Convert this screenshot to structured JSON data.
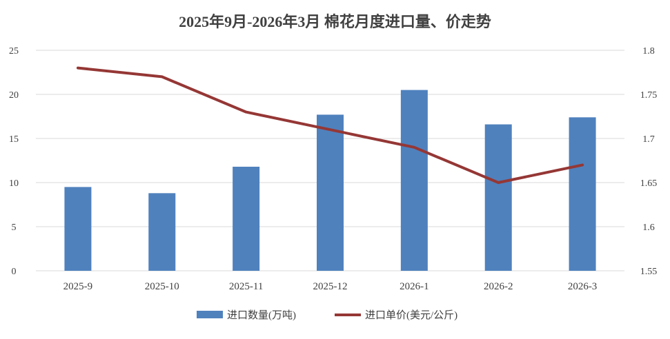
{
  "chart_data": {
    "type": "bar",
    "title": "2025年9月-2026年3月 棉花月度进口量、价走势",
    "categories": [
      "2025-9",
      "2025-10",
      "2025-11",
      "2025-12",
      "2026-1",
      "2026-2",
      "2026-3"
    ],
    "series": [
      {
        "name": "进口数量(万吨)",
        "type": "bar",
        "axis": "left",
        "color": "#4F81BD",
        "values": [
          9.5,
          8.8,
          11.8,
          17.7,
          20.5,
          16.6,
          17.4
        ]
      },
      {
        "name": "进口单价(美元/公斤)",
        "type": "line",
        "axis": "right",
        "color": "#953735",
        "values": [
          1.78,
          1.77,
          1.73,
          1.71,
          1.69,
          1.65,
          1.67
        ]
      }
    ],
    "y_left": {
      "min": 0,
      "max": 25,
      "ticks": [
        "0",
        "5",
        "10",
        "15",
        "20",
        "25"
      ]
    },
    "y_right": {
      "min": 1.55,
      "max": 1.8,
      "ticks": [
        "1.55",
        "1.6",
        "1.65",
        "1.7",
        "1.75",
        "1.8"
      ]
    },
    "grid": true,
    "legend_position": "bottom"
  }
}
